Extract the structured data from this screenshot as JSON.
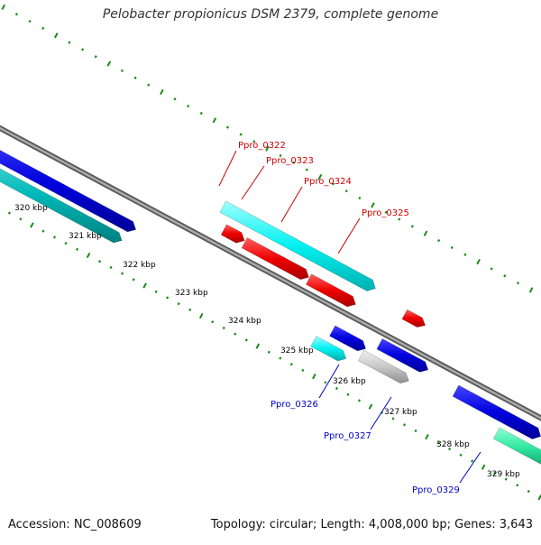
{
  "title": "Pelobacter propionicus DSM 2379, complete genome",
  "accession": "Accession: NC_008609",
  "summary": "Topology: circular; Length: 4,008,000 bp; Genes: 3,643",
  "colors": {
    "backbone": "#808080",
    "tick": "#1a8a1a",
    "red": "#ff0000",
    "blue": "#0000dd",
    "cyan": "#00ffff",
    "teal": "#00c0c0",
    "gray": "#c8c8c8",
    "mint": "#30e8a0",
    "labelRed": "#cc0000",
    "labelBlue": "#0000cc"
  },
  "scale_labels": [
    "320 kbp",
    "321 kbp",
    "322 kbp",
    "323 kbp",
    "324 kbp",
    "325 kbp",
    "326 kbp",
    "327 kbp",
    "328 kbp",
    "329 kbp"
  ],
  "gene_labels": [
    {
      "text": "Ppro_0322",
      "color": "red"
    },
    {
      "text": "Ppro_0323",
      "color": "red"
    },
    {
      "text": "Ppro_0324",
      "color": "red"
    },
    {
      "text": "Ppro_0325",
      "color": "red"
    },
    {
      "text": "Ppro_0326",
      "color": "blue"
    },
    {
      "text": "Ppro_0327",
      "color": "blue"
    },
    {
      "text": "Ppro_0329",
      "color": "blue"
    }
  ]
}
